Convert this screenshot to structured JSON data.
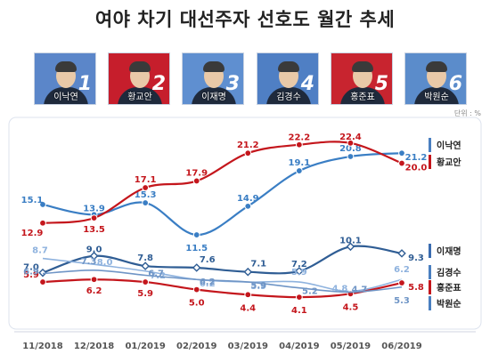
{
  "title": "여야 차기 대선주자 선호도 월간 추세",
  "unit": "단위 : %",
  "candidates": [
    {
      "name": "이낙연",
      "rank": "1",
      "bg": "#5b86c9"
    },
    {
      "name": "황교안",
      "rank": "2",
      "bg": "#c61e2c"
    },
    {
      "name": "이재명",
      "rank": "3",
      "bg": "#5f8fd0"
    },
    {
      "name": "김경수",
      "rank": "4",
      "bg": "#4f7fc4"
    },
    {
      "name": "홍준표",
      "rank": "5",
      "bg": "#c8242f"
    },
    {
      "name": "박원순",
      "rank": "6",
      "bg": "#5b8ccb"
    }
  ],
  "chart_data": {
    "type": "line",
    "title": "여야 차기 대선주자 선호도 월간 추세",
    "categories": [
      "11/2018",
      "12/2018",
      "01/2019",
      "02/2019",
      "03/2019",
      "04/2019",
      "05/2019",
      "06/2019"
    ],
    "ylabel": "단위 : %",
    "series": [
      {
        "name": "이낙연",
        "color": "#3a7ec4",
        "marker": "circle",
        "values": [
          15.1,
          13.9,
          15.3,
          11.5,
          14.9,
          19.1,
          20.8,
          21.2
        ]
      },
      {
        "name": "황교안",
        "color": "#c4161c",
        "marker": "circle",
        "values": [
          12.9,
          13.5,
          17.1,
          17.9,
          21.2,
          22.2,
          22.4,
          20.0
        ]
      },
      {
        "name": "이재명",
        "color": "#2f5d94",
        "marker": "diamond",
        "values": [
          7.0,
          9.0,
          7.8,
          7.6,
          7.1,
          7.2,
          10.1,
          9.3
        ]
      },
      {
        "name": "김경수",
        "color": "#8eb2de",
        "marker": "none",
        "values": [
          8.7,
          8.0,
          7.2,
          6.2,
          5.9,
          5.9,
          4.8,
          6.2
        ]
      },
      {
        "name": "홍준표",
        "color": "#c4161c",
        "marker": "circle",
        "values": [
          5.9,
          6.2,
          5.9,
          5.0,
          4.4,
          4.1,
          4.5,
          5.8
        ]
      },
      {
        "name": "박원순",
        "color": "#6f95c6",
        "marker": "none",
        "values": [
          6.9,
          7.3,
          6.7,
          6.2,
          5.9,
          5.2,
          4.7,
          5.3
        ]
      }
    ],
    "labels": [
      [
        "15.1",
        "13.9",
        "15.3",
        "11.5",
        "14.9",
        "19.1",
        "20.8",
        "21.2"
      ],
      [
        "12.9",
        "13.5",
        "17.1",
        "17.9",
        "21.2",
        "22.2",
        "22.4",
        "20.0"
      ],
      [
        "7.0",
        "9.0",
        "7.8",
        "7.6",
        "7.1",
        "7.2",
        "10.1",
        "9.3"
      ],
      [
        "8.7",
        "8.0",
        "7.2",
        "6.2",
        "5.9",
        "5.9",
        "4.8",
        "6.2"
      ],
      [
        "5.9",
        "6.2",
        "5.9",
        "5.0",
        "4.4",
        "4.1",
        "4.5",
        "5.8"
      ],
      [
        "6.9",
        "7.3",
        "6.7",
        "6.2",
        "5.9",
        "5.2",
        "4.7",
        "5.3"
      ]
    ],
    "legend": "right",
    "grid": false
  }
}
